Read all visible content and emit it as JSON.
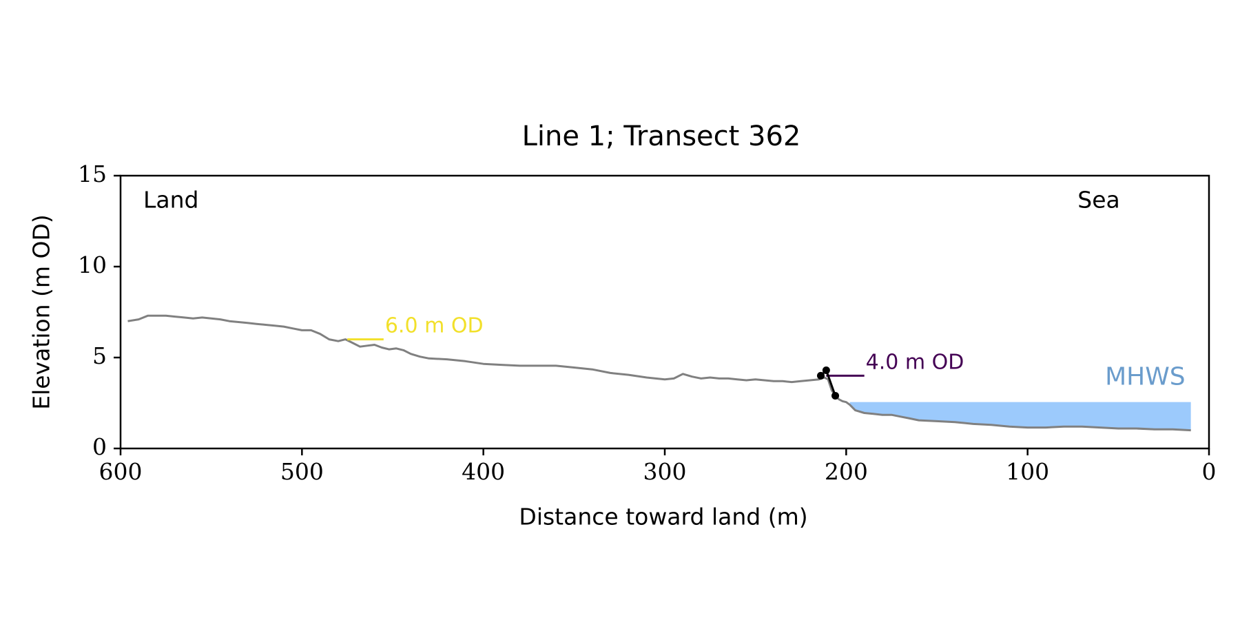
{
  "chart_data": {
    "type": "line",
    "title": "Line 1; Transect 362",
    "xlabel": "Distance toward land (m)",
    "ylabel": "Elevation (m OD)",
    "xlim": [
      600,
      0
    ],
    "ylim": [
      0,
      15
    ],
    "x_ticks": [
      600,
      500,
      400,
      300,
      200,
      100,
      0
    ],
    "y_ticks": [
      0,
      5,
      10,
      15
    ],
    "grid": false,
    "annotations": {
      "left": "Land",
      "right": "Sea"
    },
    "colors": {
      "profile": "#808080",
      "cliff": "#000000",
      "level_6": "#f2e02a",
      "level_4": "#440154",
      "mhws": "#9ccafc",
      "mhws_text": "#6a9ccc"
    },
    "profile": {
      "name": "",
      "x": [
        596,
        590,
        585,
        580,
        575,
        570,
        565,
        560,
        555,
        550,
        545,
        540,
        535,
        530,
        525,
        520,
        515,
        510,
        505,
        500,
        495,
        490,
        485,
        480,
        476,
        472,
        468,
        464,
        460,
        456,
        452,
        448,
        444,
        440,
        435,
        430,
        420,
        410,
        400,
        390,
        380,
        370,
        360,
        350,
        340,
        330,
        320,
        310,
        305,
        300,
        295,
        290,
        285,
        280,
        275,
        270,
        265,
        260,
        255,
        250,
        245,
        240,
        235,
        230,
        225,
        220,
        215,
        212,
        210,
        208,
        206,
        204,
        202,
        200,
        198,
        195,
        190,
        185,
        180,
        175,
        170,
        165,
        160,
        150,
        140,
        130,
        120,
        110,
        100,
        90,
        80,
        70,
        60,
        50,
        40,
        30,
        20,
        10
      ],
      "y": [
        7.0,
        7.1,
        7.3,
        7.3,
        7.3,
        7.25,
        7.2,
        7.15,
        7.2,
        7.15,
        7.1,
        7.0,
        6.95,
        6.9,
        6.85,
        6.8,
        6.75,
        6.7,
        6.6,
        6.5,
        6.5,
        6.3,
        6.0,
        5.9,
        6.0,
        5.8,
        5.6,
        5.65,
        5.7,
        5.55,
        5.45,
        5.5,
        5.4,
        5.2,
        5.05,
        4.95,
        4.9,
        4.8,
        4.65,
        4.6,
        4.55,
        4.55,
        4.55,
        4.45,
        4.35,
        4.15,
        4.05,
        3.9,
        3.85,
        3.8,
        3.85,
        4.1,
        3.95,
        3.85,
        3.9,
        3.85,
        3.85,
        3.8,
        3.75,
        3.8,
        3.75,
        3.7,
        3.7,
        3.65,
        3.7,
        3.75,
        3.8,
        3.9,
        3.8,
        3.2,
        2.9,
        2.7,
        2.6,
        2.55,
        2.4,
        2.1,
        1.95,
        1.9,
        1.85,
        1.85,
        1.75,
        1.65,
        1.55,
        1.5,
        1.45,
        1.35,
        1.3,
        1.2,
        1.15,
        1.15,
        1.2,
        1.2,
        1.15,
        1.1,
        1.1,
        1.05,
        1.05,
        1.0
      ]
    },
    "cliff_toe_top": {
      "x": [
        214,
        211,
        206
      ],
      "y": [
        4.0,
        4.3,
        2.9
      ]
    },
    "levels": [
      {
        "label": "6.0 m OD",
        "value": 6.0,
        "x_from": 475,
        "x_to": 455
      },
      {
        "label": "4.0 m OD",
        "value": 4.0,
        "x_from": 211,
        "x_to": 190
      }
    ],
    "mhws": {
      "label": "MHWS",
      "level": 2.55,
      "x_from": 198,
      "x_to": 10
    }
  }
}
